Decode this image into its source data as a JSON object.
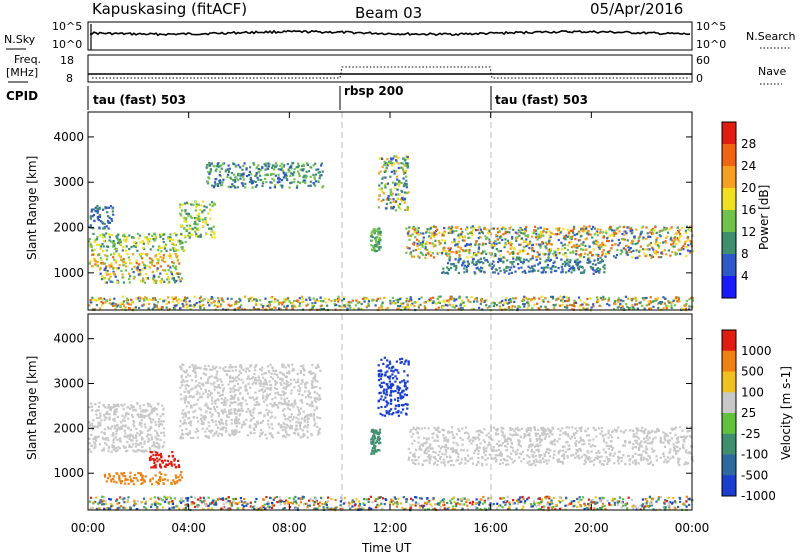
{
  "header": {
    "station": "Kapuskasing (fitACF)",
    "beam": "Beam 03",
    "date": "05/Apr/2016"
  },
  "top_panels": {
    "nsky_label": "N.Sky",
    "nsky_ticks": [
      "10^5",
      "10^0"
    ],
    "nsearch_label": "N.Search",
    "nsearch_ticks": [
      "10^5",
      "10^0"
    ],
    "freq_label": "Freq.",
    "freq_unit": "[MHz]",
    "freq_ticks": [
      "18",
      "8"
    ],
    "nave_label": "Nave",
    "nave_ticks": [
      "60",
      "0"
    ],
    "cpid_label": "CPID",
    "cpid_segments": [
      {
        "label": "tau (fast) 503",
        "start_hour": 0
      },
      {
        "label": "rbsp 200",
        "start_hour": 10
      },
      {
        "label": "tau (fast) 503",
        "start_hour": 16
      }
    ]
  },
  "colors": {
    "nave_dotted_level_high": 0.55,
    "nave_dotted_level_low": 0.1,
    "background": "#ffffff",
    "ground_scatter_grey": "#c8c8c8"
  },
  "chart_data": [
    {
      "type": "heatmap",
      "panel": "power",
      "ylabel": "Slant Range [km]",
      "xlim_hours": [
        0,
        24
      ],
      "ylim": [
        180,
        4550
      ],
      "yticks": [
        1000,
        2000,
        3000,
        4000
      ],
      "colorbar_label": "Power [dB]",
      "colorbar_ticks": [
        "4",
        "8",
        "12",
        "16",
        "20",
        "24",
        "28"
      ],
      "colorbar_colors": [
        "#1a1aff",
        "#2f58c8",
        "#3f8f6f",
        "#6fc24a",
        "#f0e020",
        "#f5a020",
        "#ef6510",
        "#e01b10"
      ],
      "patches": [
        {
          "t0": 0.0,
          "t1": 3.6,
          "r0": 1150,
          "r1": 1450,
          "color_range": [
            12,
            28
          ]
        },
        {
          "t0": 0.4,
          "t1": 3.7,
          "r0": 800,
          "r1": 1150,
          "color_range": [
            4,
            24
          ]
        },
        {
          "t0": 0.0,
          "t1": 3.9,
          "r0": 1500,
          "r1": 1900,
          "color_range": [
            8,
            20
          ]
        },
        {
          "t0": 0.0,
          "t1": 1.0,
          "r0": 2000,
          "r1": 2500,
          "color_range": [
            4,
            12
          ]
        },
        {
          "t0": 3.6,
          "t1": 5.0,
          "r0": 1800,
          "r1": 2600,
          "color_range": [
            8,
            20
          ]
        },
        {
          "t0": 4.6,
          "t1": 9.3,
          "r0": 2900,
          "r1": 3450,
          "color_range": [
            4,
            16
          ]
        },
        {
          "t0": 11.2,
          "t1": 11.6,
          "r0": 1500,
          "r1": 2000,
          "color_range": [
            8,
            16
          ]
        },
        {
          "t0": 11.5,
          "t1": 12.7,
          "r0": 2400,
          "r1": 3600,
          "color_range": [
            4,
            24
          ]
        },
        {
          "t0": 12.6,
          "t1": 24.0,
          "r0": 1350,
          "r1": 2050,
          "color_range": [
            4,
            28
          ]
        },
        {
          "t0": 14.0,
          "t1": 20.5,
          "r0": 1000,
          "r1": 1350,
          "color_range": [
            4,
            12
          ]
        },
        {
          "t0": 0.0,
          "t1": 24.0,
          "r0": 200,
          "r1": 500,
          "color_range": [
            4,
            28
          ]
        }
      ]
    },
    {
      "type": "heatmap",
      "panel": "velocity",
      "ylabel": "Slant Range [km]",
      "xlabel": "Time UT",
      "xticks": [
        "00:00",
        "04:00",
        "08:00",
        "12:00",
        "16:00",
        "20:00",
        "00:00"
      ],
      "xlim_hours": [
        0,
        24
      ],
      "ylim": [
        180,
        4550
      ],
      "yticks": [
        1000,
        2000,
        3000,
        4000
      ],
      "colorbar_label": "Velocity [m s-1]",
      "colorbar_ticks": [
        "1000",
        "500",
        "100",
        "25",
        "-25",
        "-100",
        "-500",
        "-1000"
      ],
      "colorbar_colors": [
        "#1a3fd0",
        "#2f6a9f",
        "#3f8f6f",
        "#5fc23a",
        "#c8c8c8",
        "#f0c020",
        "#f08010",
        "#e01b10"
      ],
      "patches": [
        {
          "t0": 0.0,
          "t1": 3.0,
          "r0": 1500,
          "r1": 2600,
          "color": "grey"
        },
        {
          "t0": 0.6,
          "t1": 3.7,
          "r0": 780,
          "r1": 1050,
          "color": "orange"
        },
        {
          "t0": 2.4,
          "t1": 3.6,
          "r0": 1150,
          "r1": 1500,
          "color": "red"
        },
        {
          "t0": 3.6,
          "t1": 9.2,
          "r0": 1800,
          "r1": 3450,
          "color": "grey"
        },
        {
          "t0": 11.2,
          "t1": 11.6,
          "r0": 1450,
          "r1": 2000,
          "color": "green"
        },
        {
          "t0": 11.5,
          "t1": 12.7,
          "r0": 2300,
          "r1": 3600,
          "color": "blue"
        },
        {
          "t0": 12.7,
          "t1": 24.0,
          "r0": 1200,
          "r1": 2050,
          "color": "grey"
        },
        {
          "t0": 0.0,
          "t1": 24.0,
          "r0": 200,
          "r1": 500,
          "color": "mixed"
        }
      ]
    }
  ]
}
